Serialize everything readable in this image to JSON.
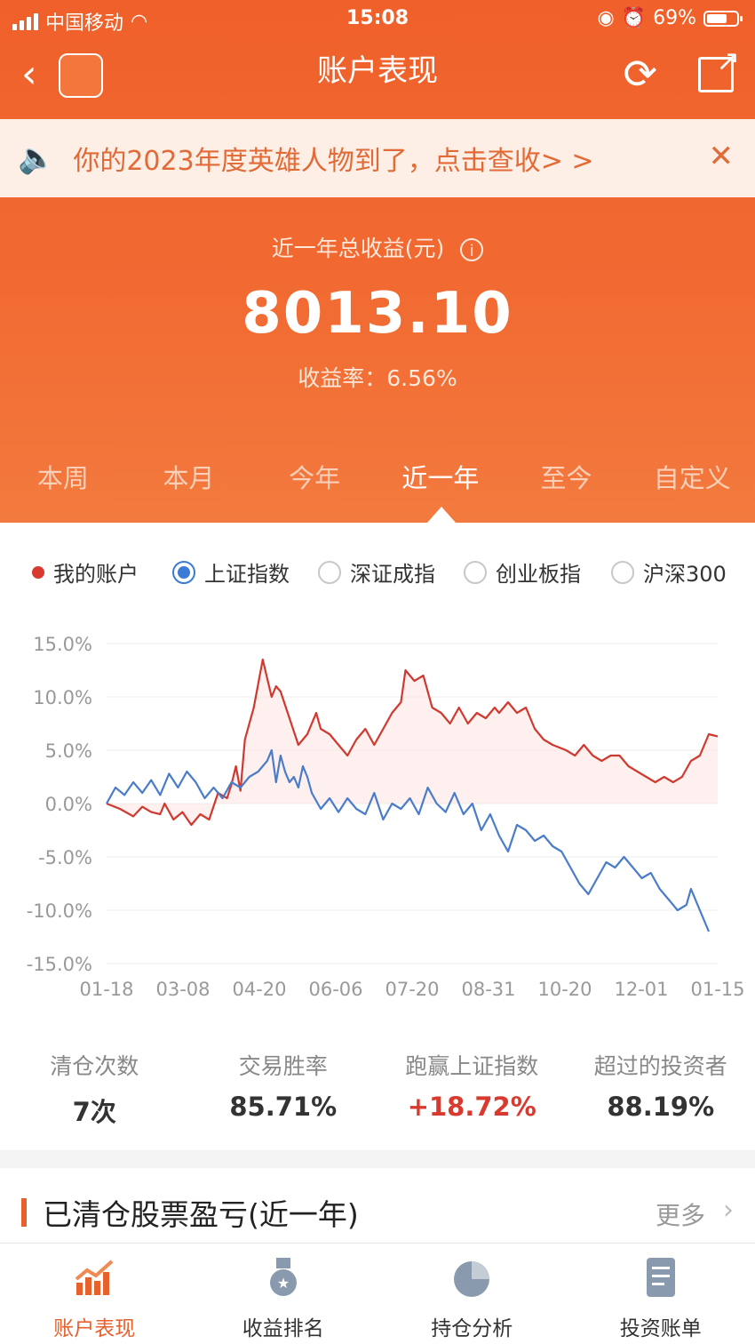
{
  "status_bar": {
    "carrier": "中国移动",
    "time": "15:08",
    "battery": "69%"
  },
  "nav": {
    "title": "账户表现"
  },
  "banner": {
    "text": "你的2023年度英雄人物到了，点击查收> >"
  },
  "summary": {
    "label": "近一年总收益(元)",
    "amount": "8013.10",
    "rate": "收益率：6.56%"
  },
  "tabs": [
    "本周",
    "本月",
    "今年",
    "近一年",
    "至今",
    "自定义"
  ],
  "legend": {
    "my_account": "我的账户",
    "options": [
      "上证指数",
      "深证成指",
      "创业板指",
      "沪深300"
    ]
  },
  "chart_data": {
    "type": "line",
    "x_tick_labels": [
      "01-18",
      "03-08",
      "04-20",
      "06-06",
      "07-20",
      "08-31",
      "10-20",
      "12-01",
      "01-15"
    ],
    "y_tick_labels": [
      "15.0%",
      "10.0%",
      "5.0%",
      "0.0%",
      "-5.0%",
      "-10.0%",
      "-15.0%"
    ],
    "ylim": [
      -15,
      15
    ],
    "series": [
      {
        "name": "我的账户",
        "color": "#d0392f",
        "points": [
          [
            0,
            0
          ],
          [
            0.03,
            -0.5
          ],
          [
            0.06,
            -1.2
          ],
          [
            0.08,
            -0.3
          ],
          [
            0.1,
            -0.8
          ],
          [
            0.12,
            -1
          ],
          [
            0.13,
            0
          ],
          [
            0.15,
            -1.5
          ],
          [
            0.17,
            -0.8
          ],
          [
            0.19,
            -2
          ],
          [
            0.21,
            -1
          ],
          [
            0.23,
            -1.5
          ],
          [
            0.25,
            1
          ],
          [
            0.27,
            0.5
          ],
          [
            0.28,
            1.8
          ],
          [
            0.29,
            3.5
          ],
          [
            0.3,
            1.2
          ],
          [
            0.31,
            6
          ],
          [
            0.33,
            9
          ],
          [
            0.35,
            13.5
          ],
          [
            0.37,
            10
          ],
          [
            0.38,
            11
          ],
          [
            0.39,
            10.5
          ],
          [
            0.41,
            8
          ],
          [
            0.43,
            5.5
          ],
          [
            0.45,
            6.5
          ],
          [
            0.47,
            8.5
          ],
          [
            0.48,
            7
          ],
          [
            0.5,
            6.5
          ],
          [
            0.52,
            5.5
          ],
          [
            0.54,
            4.5
          ],
          [
            0.56,
            6
          ],
          [
            0.58,
            7
          ],
          [
            0.6,
            5.5
          ],
          [
            0.62,
            7
          ],
          [
            0.64,
            8.5
          ],
          [
            0.66,
            9.5
          ],
          [
            0.67,
            12.5
          ],
          [
            0.69,
            11.5
          ],
          [
            0.71,
            12
          ],
          [
            0.73,
            9
          ],
          [
            0.75,
            8.5
          ],
          [
            0.77,
            7.5
          ],
          [
            0.79,
            9
          ],
          [
            0.81,
            7.5
          ],
          [
            0.83,
            8.5
          ],
          [
            0.85,
            8
          ],
          [
            0.87,
            9
          ],
          [
            0.88,
            8.5
          ],
          [
            0.9,
            9.5
          ],
          [
            0.92,
            8.5
          ],
          [
            0.94,
            9
          ],
          [
            0.96,
            7
          ],
          [
            0.98,
            6
          ],
          [
            1.0,
            5.5
          ],
          [
            1.03,
            5
          ],
          [
            1.05,
            4.5
          ],
          [
            1.07,
            5.5
          ],
          [
            1.09,
            4.5
          ],
          [
            1.11,
            4
          ],
          [
            1.13,
            4.5
          ],
          [
            1.15,
            4.5
          ],
          [
            1.17,
            3.5
          ],
          [
            1.19,
            3
          ],
          [
            1.21,
            2.5
          ],
          [
            1.23,
            2
          ],
          [
            1.25,
            2.5
          ],
          [
            1.27,
            2
          ],
          [
            1.29,
            2.5
          ],
          [
            1.31,
            4
          ],
          [
            1.33,
            4.5
          ],
          [
            1.35,
            6.5
          ],
          [
            1.37,
            6.3
          ]
        ]
      },
      {
        "name": "上证指数",
        "color": "#4a7cc9",
        "points": [
          [
            0,
            0
          ],
          [
            0.02,
            1.5
          ],
          [
            0.04,
            0.8
          ],
          [
            0.06,
            2
          ],
          [
            0.08,
            1
          ],
          [
            0.1,
            2.2
          ],
          [
            0.12,
            0.8
          ],
          [
            0.14,
            2.8
          ],
          [
            0.16,
            1.5
          ],
          [
            0.18,
            3
          ],
          [
            0.2,
            2
          ],
          [
            0.22,
            0.5
          ],
          [
            0.24,
            1.5
          ],
          [
            0.26,
            0.5
          ],
          [
            0.28,
            2
          ],
          [
            0.3,
            1.5
          ],
          [
            0.32,
            2.5
          ],
          [
            0.34,
            3
          ],
          [
            0.36,
            4
          ],
          [
            0.37,
            5
          ],
          [
            0.38,
            2
          ],
          [
            0.39,
            4.5
          ],
          [
            0.4,
            3
          ],
          [
            0.41,
            2
          ],
          [
            0.42,
            2.5
          ],
          [
            0.43,
            1.5
          ],
          [
            0.44,
            3.5
          ],
          [
            0.45,
            2.5
          ],
          [
            0.46,
            1
          ],
          [
            0.48,
            -0.5
          ],
          [
            0.5,
            0.5
          ],
          [
            0.52,
            -0.8
          ],
          [
            0.54,
            0.5
          ],
          [
            0.56,
            -0.5
          ],
          [
            0.58,
            -1
          ],
          [
            0.6,
            1
          ],
          [
            0.62,
            -1.5
          ],
          [
            0.64,
            0
          ],
          [
            0.66,
            -0.5
          ],
          [
            0.68,
            0.5
          ],
          [
            0.7,
            -1
          ],
          [
            0.72,
            1.5
          ],
          [
            0.74,
            0
          ],
          [
            0.76,
            -0.8
          ],
          [
            0.78,
            1
          ],
          [
            0.8,
            -1
          ],
          [
            0.82,
            0
          ],
          [
            0.84,
            -2.5
          ],
          [
            0.86,
            -1
          ],
          [
            0.88,
            -3
          ],
          [
            0.9,
            -4.5
          ],
          [
            0.92,
            -2
          ],
          [
            0.94,
            -2.5
          ],
          [
            0.96,
            -3.5
          ],
          [
            0.98,
            -3
          ],
          [
            1.0,
            -4
          ],
          [
            1.02,
            -4.5
          ],
          [
            1.04,
            -6
          ],
          [
            1.06,
            -7.5
          ],
          [
            1.08,
            -8.5
          ],
          [
            1.1,
            -7
          ],
          [
            1.12,
            -5.5
          ],
          [
            1.14,
            -6
          ],
          [
            1.16,
            -5
          ],
          [
            1.18,
            -6
          ],
          [
            1.2,
            -7
          ],
          [
            1.22,
            -6.5
          ],
          [
            1.24,
            -8
          ],
          [
            1.26,
            -9
          ],
          [
            1.28,
            -10
          ],
          [
            1.3,
            -9.5
          ],
          [
            1.31,
            -8
          ],
          [
            1.33,
            -10
          ],
          [
            1.35,
            -12
          ]
        ]
      }
    ]
  },
  "stats": [
    {
      "label": "清仓次数",
      "value": "7次"
    },
    {
      "label": "交易胜率",
      "value": "85.71%"
    },
    {
      "label": "跑赢上证指数",
      "value": "+18.72%"
    },
    {
      "label": "超过的投资者",
      "value": "88.19%"
    }
  ],
  "section": {
    "title": "已清仓股票盈亏(近一年)",
    "more": "更多"
  },
  "footer": [
    {
      "label": "账户表现",
      "icon": "chart-trend-icon"
    },
    {
      "label": "收益排名",
      "icon": "medal-icon"
    },
    {
      "label": "持仓分析",
      "icon": "pie-icon"
    },
    {
      "label": "投资账单",
      "icon": "document-icon"
    }
  ],
  "colors": {
    "accent": "#e8602c",
    "red": "#d93a2f",
    "blue": "#3a7bd5"
  }
}
